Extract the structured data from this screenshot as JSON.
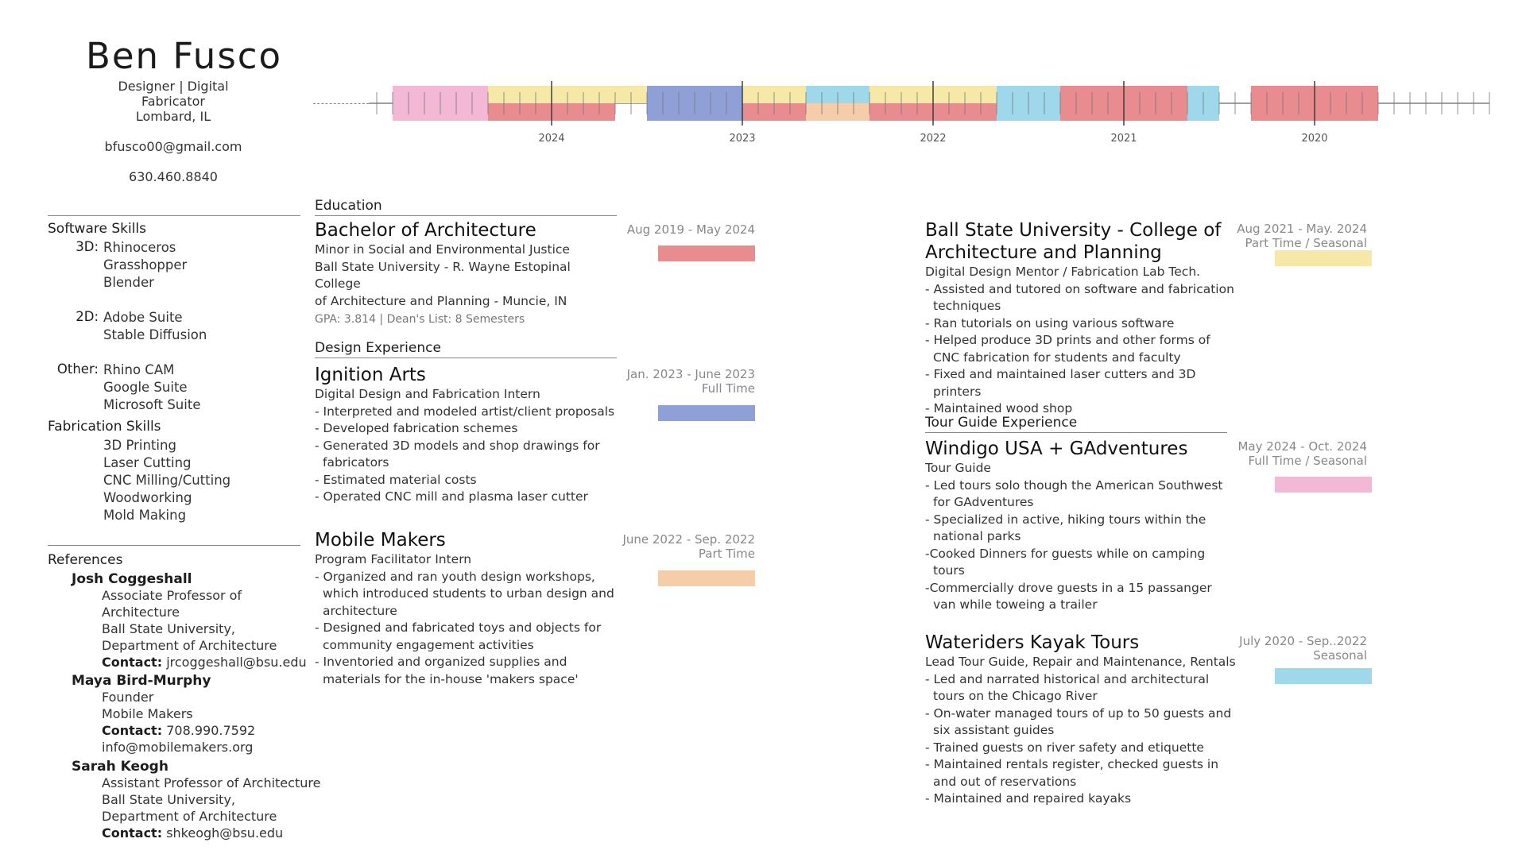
{
  "header": {
    "name": "Ben Fusco",
    "title": "Designer | Digital Fabricator",
    "location": "Lombard, IL",
    "email": "bfusco00@gmail.com",
    "phone": "630.460.8840"
  },
  "colors": {
    "red": "#e98c8f",
    "yellow": "#f6e9a8",
    "blue": "#8ea0d6",
    "peach": "#f5cda8",
    "pink": "#f2b8d6",
    "cyan": "#9fd8ea"
  },
  "timeline": {
    "years": [
      "2024",
      "2023",
      "2022",
      "2021",
      "2020"
    ]
  },
  "software_skills": {
    "heading": "Software Skills",
    "groups": [
      {
        "label": "3D:",
        "items": [
          "Rhinoceros",
          "Grasshopper",
          "Blender"
        ]
      },
      {
        "label": "2D:",
        "items": [
          "Adobe Suite",
          "Stable Diffusion"
        ]
      },
      {
        "label": "Other:",
        "items": [
          "Rhino CAM",
          "Google Suite",
          "Microsoft Suite"
        ]
      }
    ]
  },
  "fabrication_skills": {
    "heading": "Fabrication Skills",
    "items": [
      "3D Printing",
      "Laser Cutting",
      "CNC Milling/Cutting",
      "Woodworking",
      "Mold Making"
    ]
  },
  "references": {
    "heading": "References",
    "people": [
      {
        "name": "Josh Coggeshall",
        "lines": [
          "Associate Professor of",
          "Architecture",
          "Ball State University,",
          "Department of Architecture"
        ],
        "contact_label": "Contact:",
        "contact": "jrcoggeshall@bsu.edu"
      },
      {
        "name": "Maya Bird-Murphy",
        "lines": [
          "Founder",
          "Mobile Makers"
        ],
        "contact_label": "Contact:",
        "contact": "708.990.7592",
        "extra": "info@mobilemakers.org"
      },
      {
        "name": "Sarah Keogh",
        "lines": [
          "Assistant Professor of Architecture",
          "Ball State University,",
          "Department of Architecture"
        ],
        "contact_label": "Contact:",
        "contact": "shkeogh@bsu.edu"
      }
    ]
  },
  "education": {
    "heading": "Education",
    "title": "Bachelor of Architecture",
    "lines": [
      "Minor in Social and Environmental Justice",
      "Ball State University - R. Wayne Estopinal College",
      "of Architecture and Planning - Muncie, IN"
    ],
    "gpa": "GPA: 3.814 | Dean's List: 8 Semesters",
    "date": "Aug 2019 - May 2024"
  },
  "design_experience": {
    "heading": "Design Experience",
    "jobs": [
      {
        "company": "Ignition Arts",
        "role": "Digital Design and Fabrication Intern",
        "date": "Jan. 2023 - June 2023",
        "type": "Full Time",
        "bullets": [
          "- Interpreted and modeled artist/client proposals",
          "- Developed fabrication schemes",
          "- Generated 3D models and shop drawings for fabricators",
          "- Estimated material costs",
          "- Operated CNC mill and plasma laser cutter"
        ]
      },
      {
        "company": "Mobile Makers",
        "role": "Program Facilitator Intern",
        "date": "June 2022 - Sep. 2022",
        "type": "Part Time",
        "bullets": [
          "- Organized and ran youth design workshops, which introduced students to urban design and architecture",
          "- Designed and fabricated toys and objects for community engagement activities",
          "- Inventoried and organized supplies and materials for the in-house 'makers space'"
        ]
      }
    ]
  },
  "ball_state_job": {
    "company": "Ball State University - College of Architecture and Planning",
    "role": "Digital Design Mentor / Fabrication Lab Tech.",
    "date": "Aug 2021 - May. 2024",
    "type": "Part Time / Seasonal",
    "bullets": [
      "- Assisted and tutored on software and fabrication techniques",
      "- Ran tutorials on using various software",
      "- Helped produce 3D prints and other forms of CNC fabrication for students and faculty",
      "- Fixed and maintained laser cutters and 3D printers",
      "- Maintained wood shop"
    ]
  },
  "tour_guide_experience": {
    "heading": "Tour Guide Experience",
    "jobs": [
      {
        "company": "Windigo USA + GAdventures",
        "role": "Tour Guide",
        "date": "May 2024 - Oct. 2024",
        "type": "Full Time / Seasonal",
        "bullets": [
          "- Led tours solo though the American Southwest for GAdventures",
          "- Specialized in active, hiking tours within the national parks",
          "-Cooked Dinners for guests while on camping tours",
          "-Commercially drove guests in a 15 passanger van while toweing a trailer"
        ]
      },
      {
        "company": "Wateriders Kayak Tours",
        "role": "Lead Tour Guide, Repair and Maintenance, Rentals",
        "date": "July 2020 - Sep..2022",
        "type": "Seasonal",
        "bullets": [
          "- Led and narrated historical and architectural tours on the Chicago River",
          "- On-water managed tours of up to 50 guests and six assistant guides",
          "- Trained guests on river safety and etiquette",
          "- Maintained rentals register, checked guests in and out of reservations",
          "- Maintained and repaired kayaks"
        ]
      }
    ]
  }
}
